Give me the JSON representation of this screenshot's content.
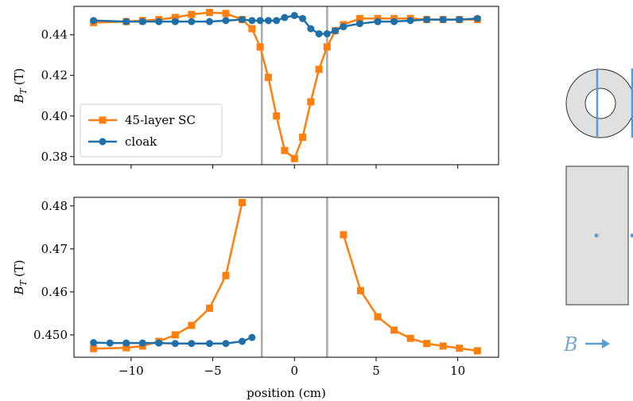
{
  "chart_data": [
    {
      "type": "line",
      "ylabel": {
        "symbol": "B",
        "subscript": "T",
        "unit": "(T)"
      },
      "xlim": [
        -13.5,
        12.5
      ],
      "ylim": [
        0.376,
        0.454
      ],
      "xticks": [
        {
          "value": -10,
          "label": "−10"
        },
        {
          "value": -5,
          "label": "−5"
        },
        0,
        5,
        10
      ],
      "show_xticklabels": false,
      "yticks": [
        0.38,
        {
          "value": 0.4,
          "label": "0.40"
        },
        0.42,
        0.44
      ],
      "vlines": [
        -2,
        2
      ],
      "vline_color": "#aaaaaa",
      "legend": "lower left",
      "series": [
        {
          "name": "45-layer SC",
          "color": "#ff7f0e",
          "marker": "square",
          "x": [
            -12.3,
            -10.3,
            -9.3,
            -8.3,
            -7.3,
            -6.3,
            -5.2,
            -4.2,
            -3.2,
            -2.6,
            -2.1,
            -1.6,
            -1.1,
            -0.6,
            0,
            0.5,
            1,
            1.5,
            2,
            2.5,
            3,
            4,
            5.1,
            6.1,
            7.1,
            8.1,
            9.1,
            10.1,
            11.2
          ],
          "values": [
            0.446,
            0.4465,
            0.447,
            0.4475,
            0.4485,
            0.45,
            0.451,
            0.4505,
            0.4475,
            0.443,
            0.434,
            0.419,
            0.4,
            0.383,
            0.379,
            0.3895,
            0.407,
            0.423,
            0.434,
            0.442,
            0.445,
            0.448,
            0.448,
            0.448,
            0.448,
            0.4475,
            0.4475,
            0.4475,
            0.4475
          ]
        },
        {
          "name": "cloak",
          "color": "#1f6fa8",
          "marker": "circle",
          "x": [
            -12.3,
            -10.3,
            -9.3,
            -8.3,
            -7.3,
            -6.3,
            -5.2,
            -4.2,
            -3.2,
            -2.6,
            -2.1,
            -1.6,
            -1.1,
            -0.6,
            0,
            0.5,
            1,
            1.5,
            2,
            2.5,
            3,
            4,
            5.1,
            6.1,
            7.1,
            8.1,
            9.1,
            10.1,
            11.2
          ],
          "values": [
            0.447,
            0.4465,
            0.4465,
            0.4465,
            0.4465,
            0.4465,
            0.4465,
            0.447,
            0.4475,
            0.447,
            0.447,
            0.447,
            0.447,
            0.4485,
            0.4495,
            0.448,
            0.443,
            0.4405,
            0.4405,
            0.442,
            0.444,
            0.4455,
            0.4465,
            0.4465,
            0.447,
            0.4475,
            0.4475,
            0.4475,
            0.448
          ]
        }
      ]
    },
    {
      "type": "line",
      "xlabel": "position (cm)",
      "ylabel": {
        "symbol": "B",
        "subscript": "T",
        "unit": "(T)"
      },
      "xlim": [
        -13.5,
        12.5
      ],
      "ylim": [
        0.4448,
        0.482
      ],
      "xticks": [
        {
          "value": -10,
          "label": "−10"
        },
        {
          "value": -5,
          "label": "−5"
        },
        0,
        5,
        10
      ],
      "show_xticklabels": true,
      "yticks": [
        {
          "value": 0.45,
          "label": "0.450"
        },
        0.46,
        0.47,
        0.48
      ],
      "vlines": [
        -2,
        2
      ],
      "vline_color": "#aaaaaa",
      "series": [
        {
          "name": "45-layer SC",
          "color": "#ff7f0e",
          "marker": "square",
          "x": [
            -12.3,
            -10.3,
            -9.3,
            -8.3,
            -7.3,
            -6.3,
            -5.2,
            -4.2,
            -3.2,
            null,
            3,
            4.05,
            5.1,
            6.1,
            7.1,
            8.1,
            9.1,
            10.1,
            11.2
          ],
          "values": [
            0.4468,
            0.447,
            0.4474,
            0.4485,
            0.45,
            0.4522,
            0.4562,
            0.4638,
            0.4808,
            null,
            0.4733,
            0.4603,
            0.4542,
            0.4511,
            0.4492,
            0.448,
            0.4474,
            0.4469,
            0.4463
          ]
        },
        {
          "name": "cloak",
          "color": "#1f6fa8",
          "marker": "circle",
          "x": [
            -12.3,
            -11.3,
            -10.3,
            -9.3,
            -8.3,
            -7.3,
            -6.3,
            -5.2,
            -4.2,
            -3.2,
            -2.6
          ],
          "values": [
            0.4482,
            0.4481,
            0.4481,
            0.4481,
            0.4481,
            0.448,
            0.448,
            0.448,
            0.448,
            0.4485,
            0.4494
          ]
        }
      ]
    }
  ],
  "diagram": {
    "field_label": "B"
  }
}
